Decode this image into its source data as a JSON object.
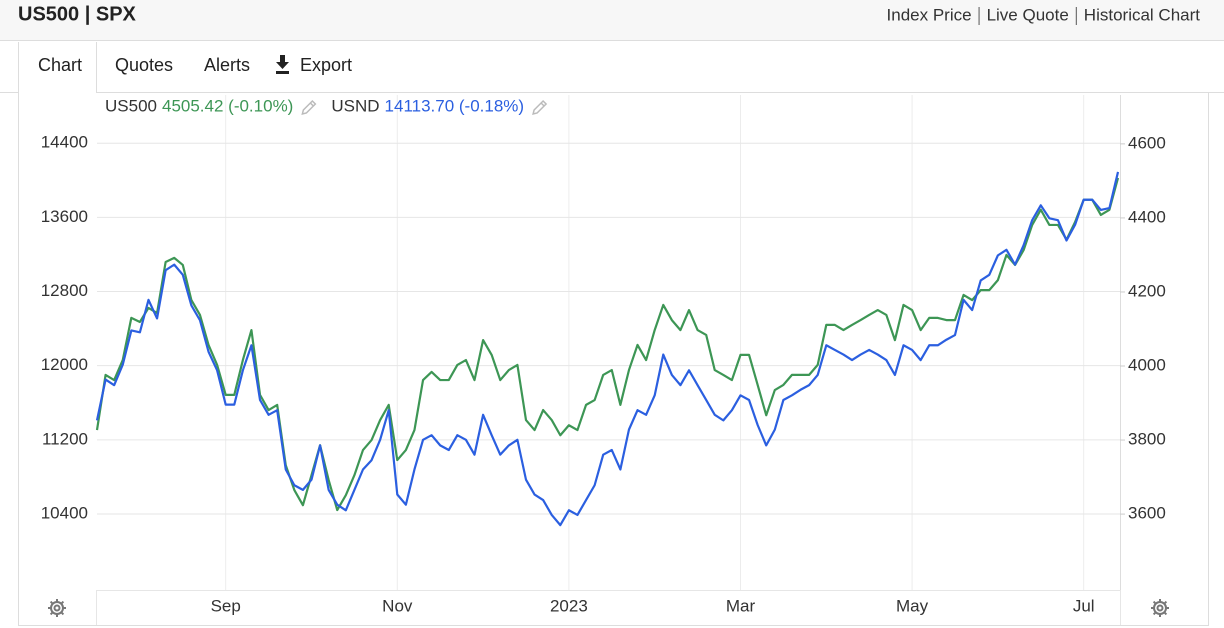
{
  "header": {
    "title": "US500 | SPX",
    "links": [
      "Index Price",
      "Live Quote",
      "Historical Chart"
    ]
  },
  "tabs": [
    "Chart",
    "Quotes",
    "Alerts",
    "Export"
  ],
  "chart_data": {
    "type": "line",
    "categories": [
      null,
      null,
      null,
      null,
      null,
      null,
      null,
      null,
      null,
      null,
      null,
      null,
      null,
      null,
      null,
      "Sep",
      null,
      null,
      null,
      null,
      null,
      null,
      null,
      null,
      null,
      null,
      null,
      null,
      null,
      null,
      null,
      null,
      null,
      null,
      null,
      "Nov",
      null,
      null,
      null,
      null,
      null,
      null,
      null,
      null,
      null,
      null,
      null,
      null,
      null,
      null,
      null,
      null,
      null,
      null,
      null,
      "2023",
      null,
      null,
      null,
      null,
      null,
      null,
      null,
      null,
      null,
      null,
      null,
      null,
      null,
      null,
      null,
      null,
      null,
      null,
      null,
      "Mar",
      null,
      null,
      null,
      null,
      null,
      null,
      null,
      null,
      null,
      null,
      null,
      null,
      null,
      null,
      null,
      null,
      null,
      null,
      null,
      "May",
      null,
      null,
      null,
      null,
      null,
      null,
      null,
      null,
      null,
      null,
      null,
      null,
      null,
      null,
      null,
      null,
      null,
      null,
      null,
      "Jul",
      null,
      null,
      null,
      null
    ],
    "series": [
      {
        "name": "US500",
        "quote": "4505.42 (-0.10%)",
        "color": "#3d9655",
        "axis": "y2",
        "values": [
          3827,
          3976,
          3962,
          4016,
          4130,
          4119,
          4157,
          4143,
          4281,
          4292,
          4273,
          4178,
          4138,
          4057,
          4003,
          3922,
          3922,
          4016,
          4097,
          3922,
          3881,
          3895,
          3732,
          3665,
          3624,
          3705,
          3786,
          3692,
          3611,
          3651,
          3705,
          3773,
          3800,
          3854,
          3895,
          3746,
          3773,
          3827,
          3962,
          3984,
          3962,
          3962,
          4003,
          4016,
          3962,
          4070,
          4030,
          3962,
          3989,
          4003,
          3854,
          3827,
          3881,
          3854,
          3813,
          3840,
          3827,
          3895,
          3908,
          3976,
          3989,
          3895,
          3989,
          4057,
          4016,
          4097,
          4165,
          4124,
          4097,
          4151,
          4097,
          4084,
          3989,
          3976,
          3962,
          4030,
          4030,
          3949,
          3867,
          3935,
          3949,
          3976,
          3976,
          3976,
          4003,
          4111,
          4111,
          4097,
          4111,
          4124,
          4138,
          4151,
          4138,
          4070,
          4165,
          4151,
          4097,
          4130,
          4130,
          4124,
          4124,
          4192,
          4178,
          4205,
          4205,
          4232,
          4300,
          4273,
          4313,
          4381,
          4422,
          4381,
          4381,
          4341,
          4389,
          4449,
          4449,
          4408,
          4422,
          4508
        ]
      },
      {
        "name": "USND",
        "quote": "14113.70 (-0.18%)",
        "color": "#2b5fe0",
        "axis": "y",
        "values": [
          11410,
          11850,
          11790,
          12010,
          12380,
          12360,
          12710,
          12510,
          13030,
          13090,
          12980,
          12650,
          12490,
          12150,
          11950,
          11580,
          11580,
          11950,
          12220,
          11630,
          11470,
          11520,
          10880,
          10710,
          10660,
          10770,
          11140,
          10660,
          10500,
          10440,
          10660,
          10880,
          10980,
          11200,
          11520,
          10610,
          10500,
          10880,
          11200,
          11250,
          11140,
          11090,
          11250,
          11200,
          11040,
          11470,
          11250,
          11040,
          11140,
          11200,
          10770,
          10610,
          10550,
          10390,
          10280,
          10440,
          10390,
          10550,
          10710,
          11040,
          11090,
          10880,
          11310,
          11520,
          11470,
          11680,
          12120,
          11900,
          11790,
          11950,
          11790,
          11630,
          11470,
          11410,
          11520,
          11680,
          11630,
          11360,
          11140,
          11310,
          11630,
          11680,
          11740,
          11790,
          11900,
          12220,
          12170,
          12120,
          12060,
          12120,
          12170,
          12120,
          12060,
          11900,
          12220,
          12170,
          12060,
          12220,
          12220,
          12280,
          12330,
          12710,
          12600,
          12920,
          12980,
          13190,
          13250,
          13090,
          13300,
          13570,
          13730,
          13590,
          13570,
          13350,
          13520,
          13790,
          13790,
          13680,
          13700,
          14090
        ]
      }
    ],
    "ylim": [
      9580,
      14920
    ],
    "yticks": [
      10400,
      11200,
      12000,
      12800,
      13600,
      14400
    ],
    "y2lim": [
      3395,
      4732
    ],
    "y2ticks": [
      3600,
      3800,
      4000,
      4200,
      4400,
      4600
    ],
    "grid": true
  }
}
